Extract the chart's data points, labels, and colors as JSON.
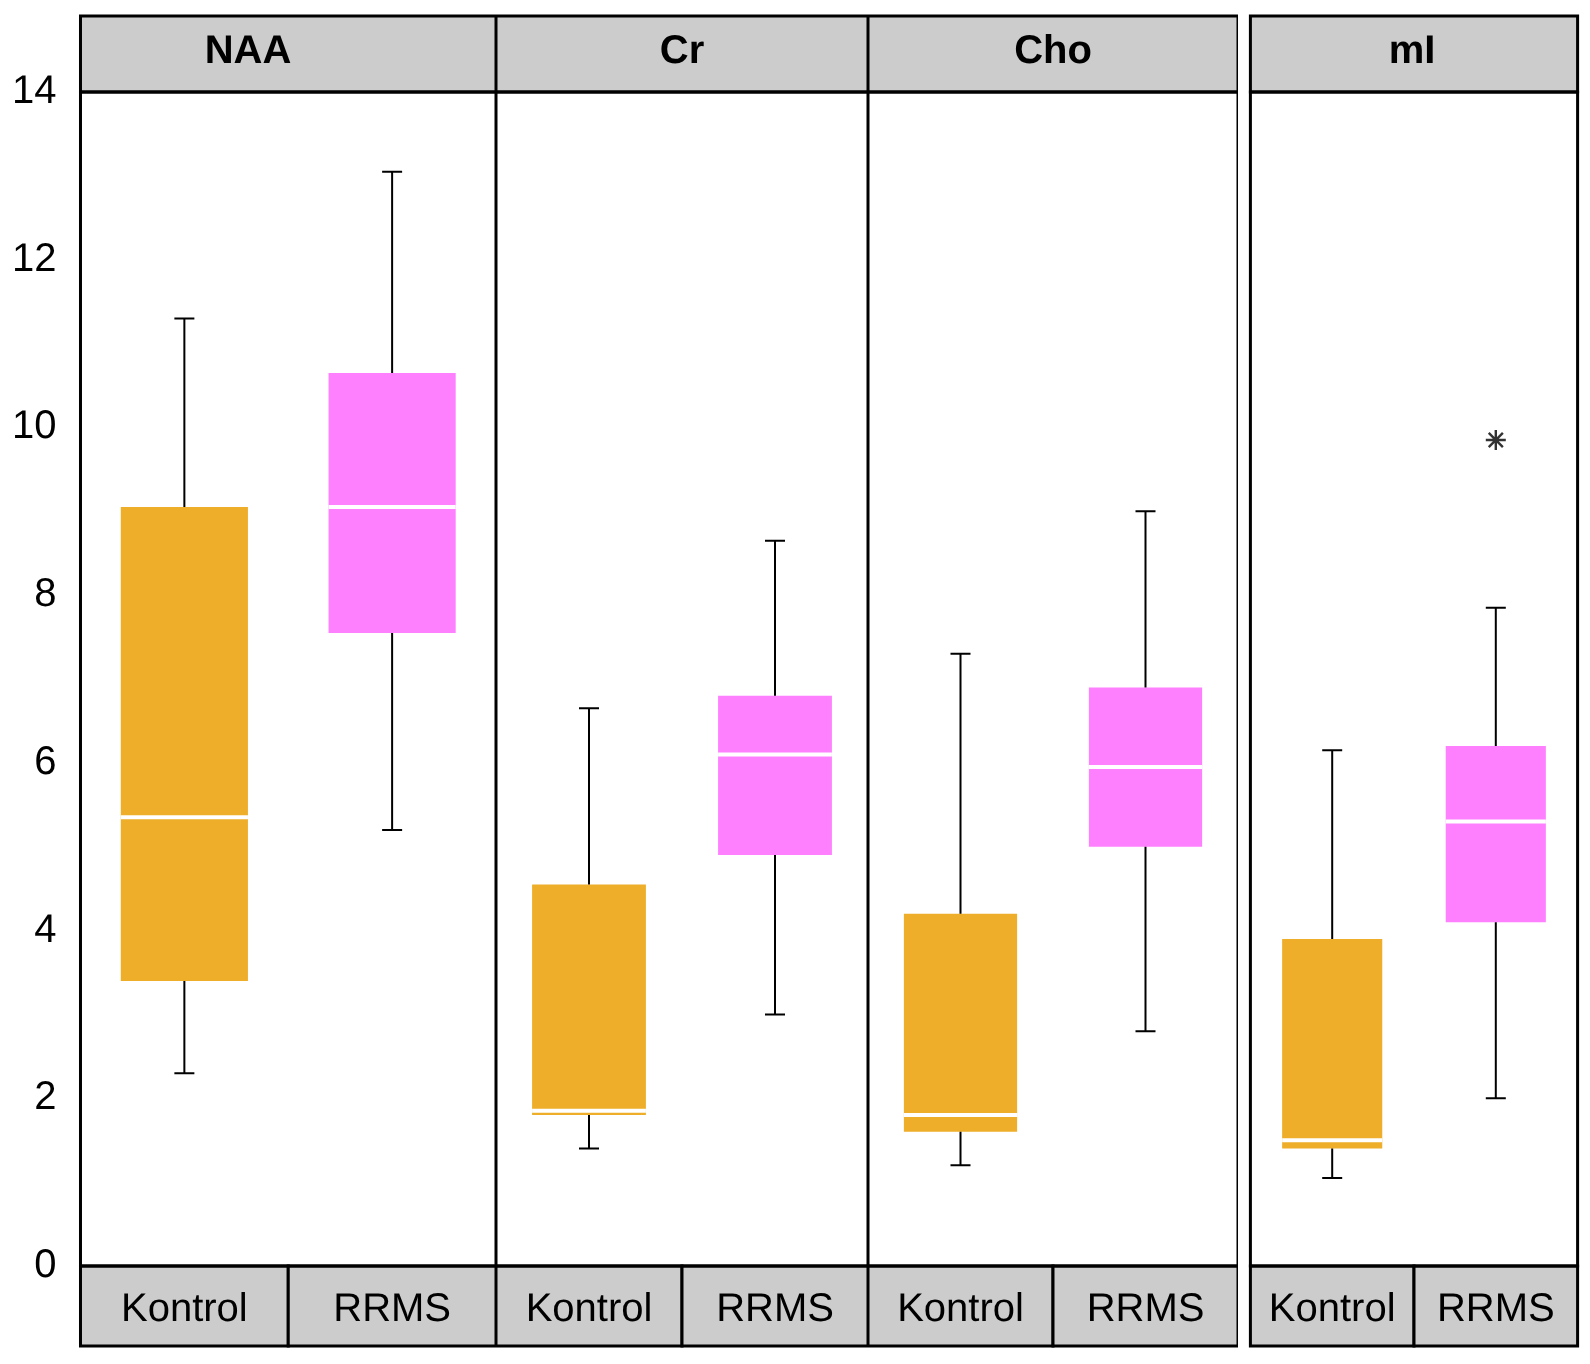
{
  "chart_data": [
    {
      "type": "box",
      "title": "NAA",
      "categories": [
        "Kontrol",
        "RRMS"
      ],
      "colors": [
        "#eeae2a",
        "#ff80ff"
      ],
      "ylim": [
        0,
        14
      ],
      "yticks": [
        0,
        2,
        4,
        6,
        8,
        10,
        12,
        14
      ],
      "boxes": [
        {
          "low": 2.3,
          "q1": 3.4,
          "median": 5.35,
          "q3": 9.05,
          "high": 11.3
        },
        {
          "low": 5.2,
          "q1": 7.55,
          "median": 9.05,
          "q3": 10.65,
          "high": 13.05
        }
      ]
    },
    {
      "type": "box",
      "title": "Cr",
      "categories": [
        "Kontrol",
        "RRMS"
      ],
      "colors": [
        "#eeae2a",
        "#ff80ff"
      ],
      "ylim": [
        0,
        14
      ],
      "yticks": [
        0,
        2,
        4,
        6,
        8,
        10,
        12,
        14
      ],
      "tick_labels": "x",
      "boxes": [
        {
          "low": 1.4,
          "q1": 1.8,
          "median": 1.85,
          "q3": 4.55,
          "high": 6.65
        },
        {
          "low": 3.0,
          "q1": 4.9,
          "median": 6.1,
          "q3": 6.8,
          "high": 8.65
        }
      ]
    },
    {
      "type": "box",
      "title": "Cho",
      "categories": [
        "Kontrol",
        "RRMS"
      ],
      "colors": [
        "#eeae2a",
        "#ff80ff"
      ],
      "ylim": [
        0,
        14
      ],
      "yticks": [
        0,
        2,
        4,
        6,
        8,
        10,
        12,
        14
      ],
      "tick_labels": "x",
      "boxes": [
        {
          "low": 1.2,
          "q1": 1.6,
          "median": 1.8,
          "q3": 4.2,
          "high": 7.3
        },
        {
          "low": 2.8,
          "q1": 5.0,
          "median": 5.95,
          "q3": 6.9,
          "high": 9.0
        }
      ]
    },
    {
      "type": "box",
      "title": "mI",
      "categories": [
        "Kontrol",
        "RRMS"
      ],
      "colors": [
        "#eeae2a",
        "#ff80ff"
      ],
      "ylim": [
        0,
        14
      ],
      "yticks": [
        0,
        2,
        4,
        6,
        8,
        10,
        12,
        14
      ],
      "tick_labels": "x",
      "boxes": [
        {
          "low": 1.05,
          "q1": 1.4,
          "median": 1.5,
          "q3": 3.9,
          "high": 6.15
        },
        {
          "low": 2.0,
          "q1": 4.1,
          "median": 5.3,
          "q3": 6.2,
          "high": 7.85,
          "outliers": [
            9.85
          ]
        }
      ]
    }
  ]
}
